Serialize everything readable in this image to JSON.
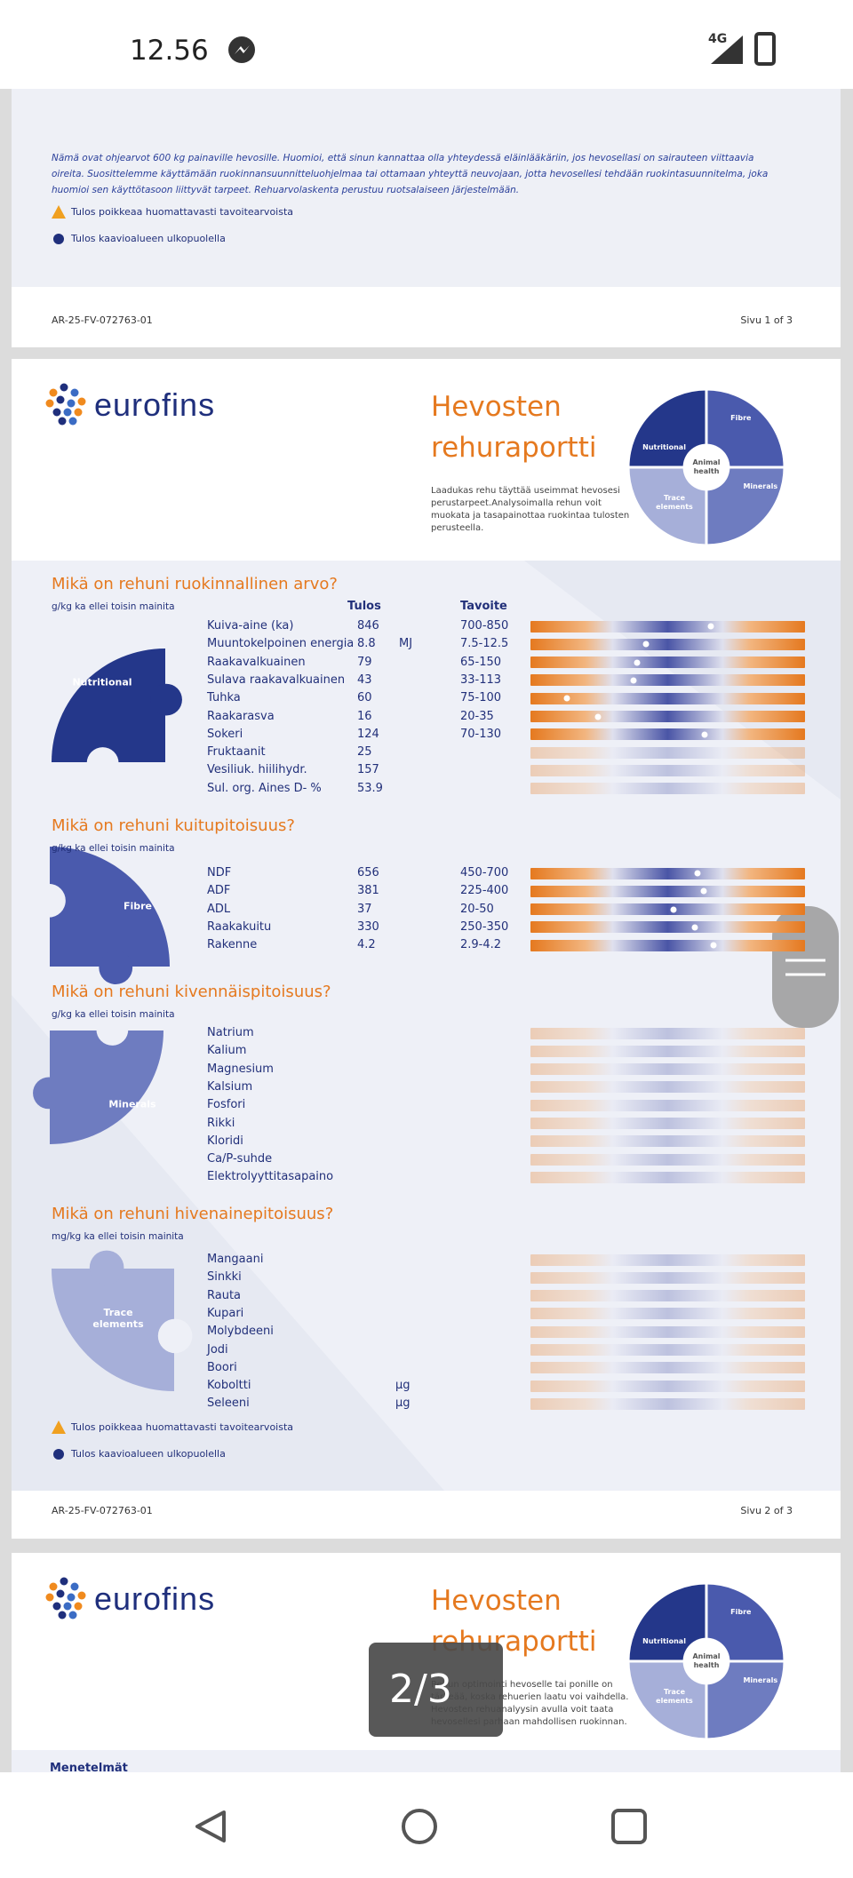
{
  "status_bar": {
    "time": "12.56",
    "network": "4G"
  },
  "page1": {
    "notes": "Nämä ovat ohjearvot 600 kg painaville hevosille. Huomioi, että sinun kannattaa olla yhteydessä eläinlääkäriin, jos hevosellasi on sairauteen viittaavia oireita. Suosittelemme käyttämään ruokinnansuunnitteluohjelmaa tai ottamaan yhteyttä neuvojaan, jotta hevosellesi tehdään ruokintasuunnitelma, joka huomioi sen käyttötasoon liittyvät tarpeet. Rehuarvolaskenta perustuu ruotsalaiseen järjestelmään.",
    "legend": [
      "Tulos poikkeaa huomattavasti tavoitearvoista",
      "Tulos kaavioalueen ulkopuolella"
    ],
    "footer": {
      "code": "AR-25-FV-072763-01",
      "page": "Sivu 1 of 3"
    }
  },
  "page2": {
    "logo": "eurofins",
    "title": [
      "Hevosten",
      "rehuraportti"
    ],
    "description": "Laadukas rehu täyttää useimmat hevosesi perustarpeet.Analysoimalla rehun voit muokata ja tasapainottaa ruokintaa tulosten perusteella.",
    "puzzle": {
      "nutritional": "Nutritional",
      "fibre": "Fibre",
      "animal_health": "Animal health",
      "minerals": "Minerals",
      "trace_elements": "Trace elements"
    },
    "columns": {
      "result": "Tulos",
      "target": "Tavoite"
    },
    "sections": [
      {
        "title": "Mikä on rehuni ruokinnallinen arvo?",
        "unit_note": "g/kg ka ellei toisin mainita",
        "icon_label": "Nutritional",
        "rows": [
          {
            "name": "Kuiva-aine (ka)",
            "result": 846,
            "target": {
              "low": 700,
              "high": 850,
              "label": "700-850"
            }
          },
          {
            "name": "Muuntokelpoinen energia",
            "result": 8.8,
            "unit": "MJ",
            "target": {
              "low": 7.5,
              "high": 12.5,
              "label": "7.5-12.5"
            }
          },
          {
            "name": "Raakavalkuainen",
            "result": 79,
            "target": {
              "low": 65,
              "high": 150,
              "label": "65-150"
            }
          },
          {
            "name": "Sulava raakavalkuainen",
            "result": 43,
            "target": {
              "low": 33,
              "high": 113,
              "label": "33-113"
            }
          },
          {
            "name": "Tuhka",
            "result": 60,
            "target": {
              "low": 75,
              "high": 100,
              "label": "75-100"
            }
          },
          {
            "name": "Raakarasva",
            "result": 16,
            "target": {
              "low": 20,
              "high": 35,
              "label": "20-35"
            }
          },
          {
            "name": "Sokeri",
            "result": 124,
            "target": {
              "low": 70,
              "high": 130,
              "label": "70-130"
            }
          },
          {
            "name": "Fruktaanit",
            "result": 25
          },
          {
            "name": "Vesiliuk. hiilihydr.",
            "result": 157
          },
          {
            "name": "Sul. org. Aines D- %",
            "result": 53.9
          }
        ]
      },
      {
        "title": "Mikä on rehuni kuitupitoisuus?",
        "unit_note": "g/kg ka ellei toisin mainita",
        "icon_label": "Fibre",
        "rows": [
          {
            "name": "NDF",
            "result": 656,
            "target": {
              "low": 450,
              "high": 700,
              "label": "450-700"
            }
          },
          {
            "name": "ADF",
            "result": 381,
            "target": {
              "low": 225,
              "high": 400,
              "label": "225-400"
            }
          },
          {
            "name": "ADL",
            "result": 37,
            "target": {
              "low": 20,
              "high": 50,
              "label": "20-50"
            }
          },
          {
            "name": "Raakakuitu",
            "result": 330,
            "target": {
              "low": 250,
              "high": 350,
              "label": "250-350"
            }
          },
          {
            "name": "Rakenne",
            "result": 4.2,
            "target": {
              "low": 2.9,
              "high": 4.2,
              "label": "2.9-4.2"
            }
          }
        ]
      },
      {
        "title": "Mikä on rehuni kivennäispitoisuus?",
        "unit_note": "g/kg ka ellei toisin mainita",
        "icon_label": "Minerals",
        "rows": [
          {
            "name": "Natrium"
          },
          {
            "name": "Kalium"
          },
          {
            "name": "Magnesium"
          },
          {
            "name": "Kalsium"
          },
          {
            "name": "Fosfori"
          },
          {
            "name": "Rikki"
          },
          {
            "name": "Kloridi"
          },
          {
            "name": "Ca/P-suhde"
          },
          {
            "name": "Elektrolyyttitasapaino"
          }
        ]
      },
      {
        "title": "Mikä on rehuni hivenainepitoisuus?",
        "unit_note": "mg/kg ka ellei toisin mainita",
        "icon_label": "Trace elements",
        "rows": [
          {
            "name": "Mangaani"
          },
          {
            "name": "Sinkki"
          },
          {
            "name": "Rauta"
          },
          {
            "name": "Kupari"
          },
          {
            "name": "Molybdeeni"
          },
          {
            "name": "Jodi"
          },
          {
            "name": "Boori"
          },
          {
            "name": "Koboltti",
            "unit": "µg"
          },
          {
            "name": "Seleeni",
            "unit": "µg"
          }
        ]
      }
    ],
    "legend": [
      "Tulos poikkeaa huomattavasti tavoitearvoista",
      "Tulos kaavioalueen ulkopuolella"
    ],
    "footer": {
      "code": "AR-25-FV-072763-01",
      "page": "Sivu 2 of 3"
    }
  },
  "page3": {
    "logo": "eurofins",
    "title": [
      "Hevosten",
      "rehuraportti"
    ],
    "description": "Rehun optimointi hevoselle tai ponille on tärkeää, koska rehuerien laatu voi vaihdella. Hevosten rehuanalyysin avulla voit taata hevosellesi parhaan mahdollisen ruokinnan.",
    "puzzle": {
      "nutritional": "Nutritional",
      "fibre": "Fibre",
      "animal_health": "Animal health",
      "minerals": "Minerals",
      "trace_elements": "Trace elements"
    },
    "section": "Menetelmät"
  },
  "viewer": {
    "page_indicator": "2/3"
  }
}
